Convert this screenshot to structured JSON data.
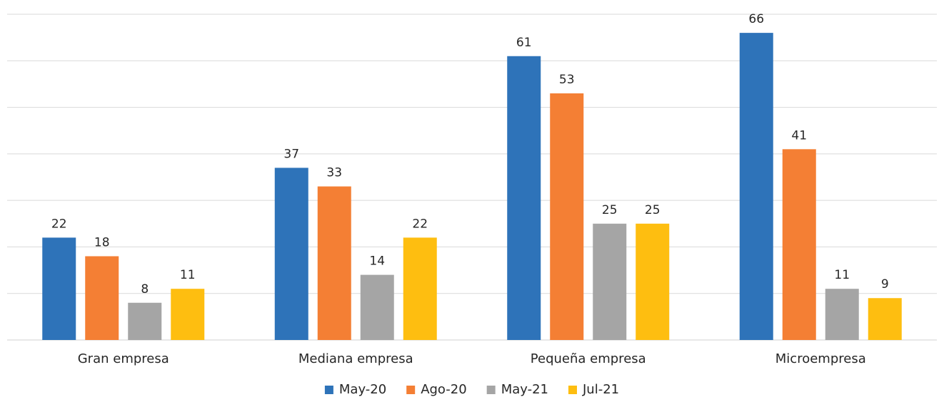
{
  "chart_data": {
    "type": "bar",
    "categories": [
      "Gran empresa",
      "Mediana empresa",
      "Pequeña empresa",
      "Microempresa"
    ],
    "series": [
      {
        "name": "May-20",
        "color": "#2E73B9",
        "values": [
          22,
          37,
          61,
          66
        ]
      },
      {
        "name": "Ago-20",
        "color": "#F47F34",
        "values": [
          18,
          33,
          53,
          41
        ]
      },
      {
        "name": "May-21",
        "color": "#A5A5A5",
        "values": [
          8,
          14,
          25,
          11
        ]
      },
      {
        "name": "Jul-21",
        "color": "#FEBE10",
        "values": [
          11,
          22,
          25,
          9
        ]
      }
    ],
    "ylim": [
      0,
      70
    ],
    "grid": true,
    "legend_position": "bottom"
  }
}
